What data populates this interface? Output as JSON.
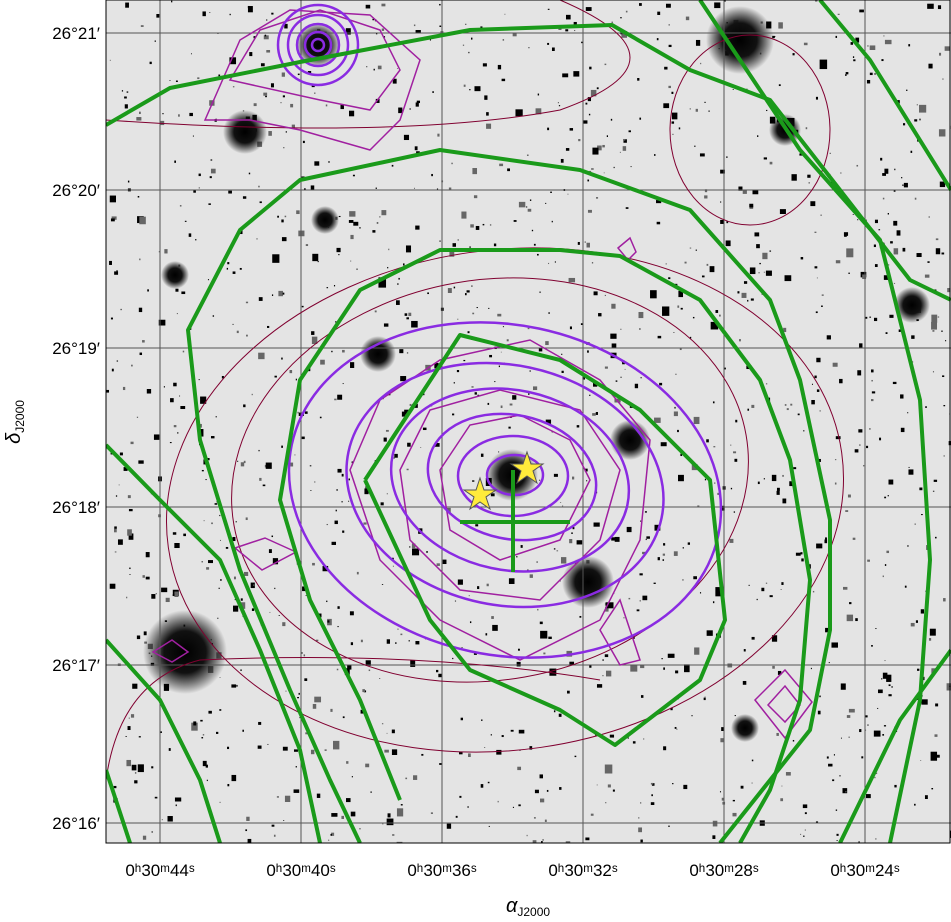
{
  "x_axis": {
    "label": {
      "symbol": "α",
      "subscript": "J2000"
    },
    "ticks": [
      "0ʰ30ᵐ44ˢ",
      "0ʰ30ᵐ40ˢ",
      "0ʰ30ᵐ36ˢ",
      "0ʰ30ᵐ32ˢ",
      "0ʰ30ᵐ28ˢ",
      "0ʰ30ᵐ24ˢ"
    ]
  },
  "y_axis": {
    "label": {
      "symbol": "δ",
      "subscript": "J2000"
    },
    "ticks": [
      "26°21′",
      "26°20′",
      "26°19′",
      "26°18′",
      "26°17′",
      "26°16′"
    ]
  }
}
